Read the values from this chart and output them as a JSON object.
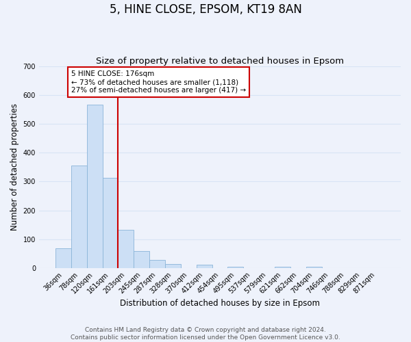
{
  "title": "5, HINE CLOSE, EPSOM, KT19 8AN",
  "subtitle": "Size of property relative to detached houses in Epsom",
  "xlabel": "Distribution of detached houses by size in Epsom",
  "ylabel": "Number of detached properties",
  "bar_labels": [
    "36sqm",
    "78sqm",
    "120sqm",
    "161sqm",
    "203sqm",
    "245sqm",
    "287sqm",
    "328sqm",
    "370sqm",
    "412sqm",
    "454sqm",
    "495sqm",
    "537sqm",
    "579sqm",
    "621sqm",
    "662sqm",
    "704sqm",
    "746sqm",
    "788sqm",
    "829sqm",
    "871sqm"
  ],
  "bar_heights": [
    68,
    355,
    568,
    313,
    132,
    58,
    27,
    14,
    0,
    10,
    0,
    5,
    0,
    0,
    5,
    0,
    5,
    0,
    0,
    0,
    0
  ],
  "bar_color": "#ccdff5",
  "bar_edge_color": "#8ab4d8",
  "vline_x": 3.5,
  "annotation_line1": "5 HINE CLOSE: 176sqm",
  "annotation_line2": "← 73% of detached houses are smaller (1,118)",
  "annotation_line3": "27% of semi-detached houses are larger (417) →",
  "annotation_box_color": "#ffffff",
  "annotation_box_edge_color": "#cc0000",
  "vline_color": "#cc0000",
  "ylim": [
    0,
    700
  ],
  "yticks": [
    0,
    100,
    200,
    300,
    400,
    500,
    600,
    700
  ],
  "footer_line1": "Contains HM Land Registry data © Crown copyright and database right 2024.",
  "footer_line2": "Contains public sector information licensed under the Open Government Licence v3.0.",
  "background_color": "#eef2fb",
  "grid_color": "#d8e4f5",
  "title_fontsize": 12,
  "subtitle_fontsize": 9.5,
  "axis_label_fontsize": 8.5,
  "tick_fontsize": 7,
  "footer_fontsize": 6.5,
  "annotation_fontsize": 7.5
}
